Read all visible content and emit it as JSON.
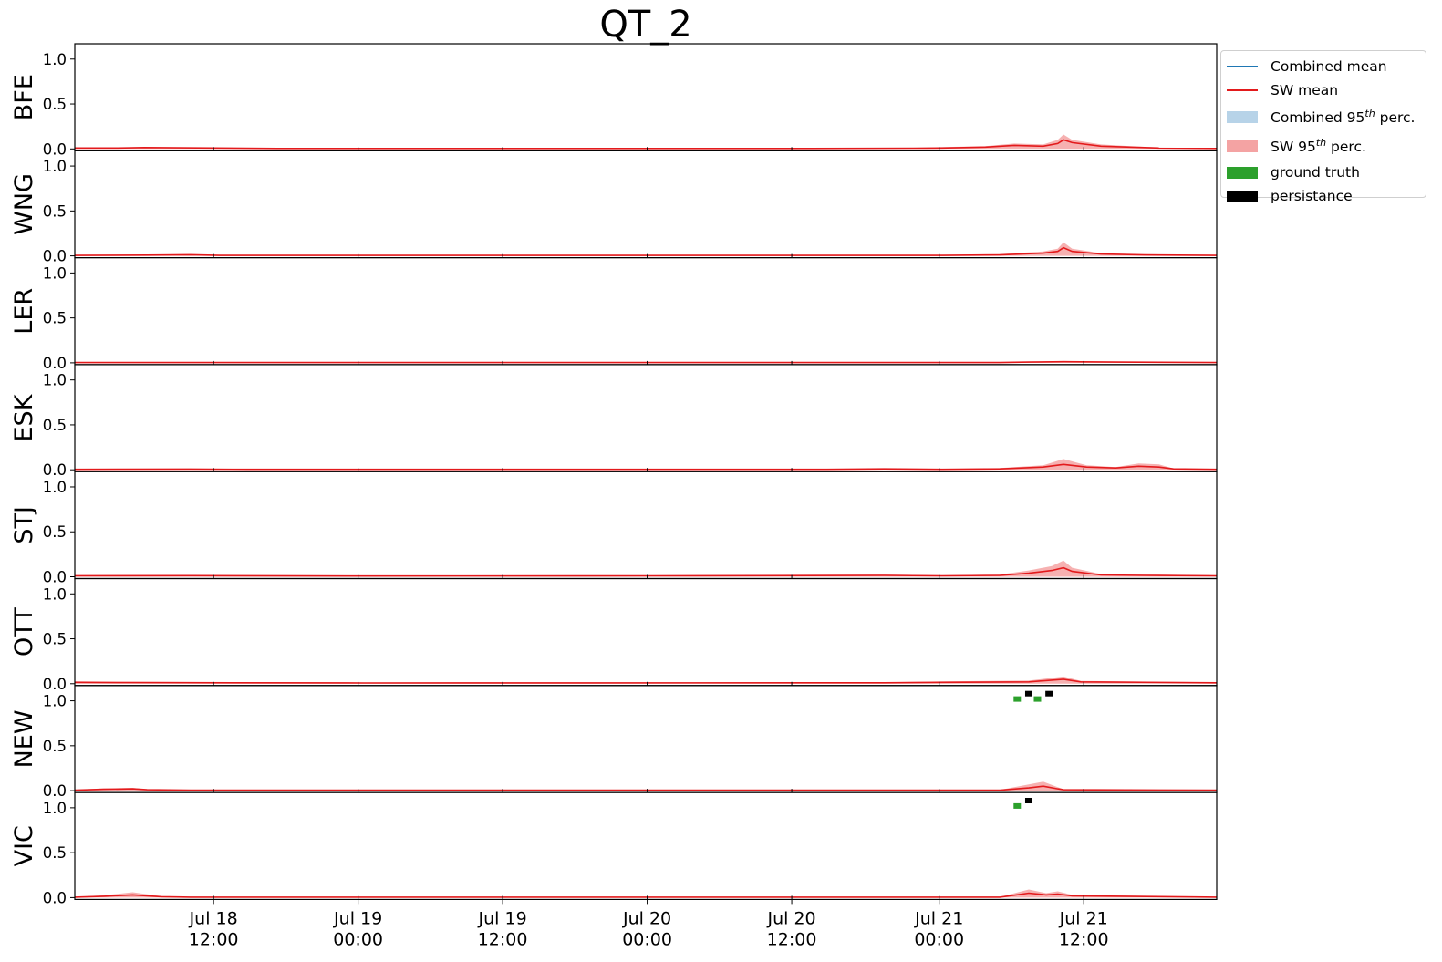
{
  "chart_data": {
    "type": "line",
    "title": "QT_2",
    "panels": [
      {
        "name": "BFE",
        "ylim": [
          0,
          1.15
        ],
        "yticks": [
          "0.0",
          "0.5",
          "1.0"
        ],
        "sw_mean": [
          [
            0,
            0.01
          ],
          [
            15,
            0.01
          ],
          [
            24,
            0.015
          ],
          [
            70,
            0.005
          ],
          [
            250,
            0.005
          ],
          [
            290,
            0.008
          ],
          [
            300,
            0.01
          ],
          [
            315,
            0.02
          ],
          [
            325,
            0.04
          ],
          [
            335,
            0.03
          ],
          [
            340,
            0.06
          ],
          [
            342,
            0.1
          ],
          [
            345,
            0.07
          ],
          [
            355,
            0.03
          ],
          [
            365,
            0.02
          ],
          [
            375,
            0.01
          ],
          [
            395,
            0.005
          ]
        ],
        "sw_p95": [
          [
            0,
            0.015
          ],
          [
            15,
            0.015
          ],
          [
            24,
            0.02
          ],
          [
            70,
            0.008
          ],
          [
            250,
            0.008
          ],
          [
            290,
            0.012
          ],
          [
            300,
            0.02
          ],
          [
            315,
            0.03
          ],
          [
            325,
            0.06
          ],
          [
            335,
            0.05
          ],
          [
            340,
            0.1
          ],
          [
            342,
            0.16
          ],
          [
            345,
            0.1
          ],
          [
            355,
            0.05
          ],
          [
            365,
            0.03
          ],
          [
            375,
            0.015
          ],
          [
            395,
            0.008
          ]
        ],
        "ground_truth": [],
        "persistance": []
      },
      {
        "name": "WNG",
        "ylim": [
          0,
          1.15
        ],
        "yticks": [
          "0.0",
          "0.5",
          "1.0"
        ],
        "sw_mean": [
          [
            0,
            0.005
          ],
          [
            25,
            0.008
          ],
          [
            40,
            0.012
          ],
          [
            50,
            0.005
          ],
          [
            300,
            0.005
          ],
          [
            320,
            0.01
          ],
          [
            335,
            0.03
          ],
          [
            340,
            0.05
          ],
          [
            342,
            0.09
          ],
          [
            345,
            0.05
          ],
          [
            355,
            0.02
          ],
          [
            370,
            0.01
          ],
          [
            395,
            0.005
          ]
        ],
        "sw_p95": [
          [
            0,
            0.008
          ],
          [
            25,
            0.012
          ],
          [
            40,
            0.02
          ],
          [
            50,
            0.008
          ],
          [
            300,
            0.008
          ],
          [
            320,
            0.02
          ],
          [
            335,
            0.05
          ],
          [
            340,
            0.08
          ],
          [
            342,
            0.15
          ],
          [
            345,
            0.08
          ],
          [
            355,
            0.03
          ],
          [
            370,
            0.015
          ],
          [
            395,
            0.008
          ]
        ],
        "ground_truth": [],
        "persistance": []
      },
      {
        "name": "LER",
        "ylim": [
          0,
          1.15
        ],
        "yticks": [
          "0.0",
          "0.5",
          "1.0"
        ],
        "sw_mean": [
          [
            0,
            0.003
          ],
          [
            320,
            0.003
          ],
          [
            330,
            0.008
          ],
          [
            342,
            0.012
          ],
          [
            360,
            0.008
          ],
          [
            395,
            0.003
          ]
        ],
        "sw_p95": [
          [
            0,
            0.005
          ],
          [
            320,
            0.005
          ],
          [
            330,
            0.012
          ],
          [
            342,
            0.02
          ],
          [
            360,
            0.012
          ],
          [
            395,
            0.005
          ]
        ],
        "ground_truth": [],
        "persistance": []
      },
      {
        "name": "ESK",
        "ylim": [
          0,
          1.15
        ],
        "yticks": [
          "0.0",
          "0.5",
          "1.0"
        ],
        "sw_mean": [
          [
            0,
            0.005
          ],
          [
            40,
            0.008
          ],
          [
            60,
            0.005
          ],
          [
            260,
            0.005
          ],
          [
            280,
            0.01
          ],
          [
            300,
            0.005
          ],
          [
            320,
            0.01
          ],
          [
            335,
            0.03
          ],
          [
            342,
            0.06
          ],
          [
            350,
            0.03
          ],
          [
            360,
            0.02
          ],
          [
            368,
            0.04
          ],
          [
            375,
            0.03
          ],
          [
            380,
            0.01
          ],
          [
            395,
            0.005
          ]
        ],
        "sw_p95": [
          [
            0,
            0.008
          ],
          [
            40,
            0.012
          ],
          [
            60,
            0.008
          ],
          [
            260,
            0.008
          ],
          [
            280,
            0.015
          ],
          [
            300,
            0.008
          ],
          [
            320,
            0.02
          ],
          [
            335,
            0.05
          ],
          [
            342,
            0.12
          ],
          [
            350,
            0.05
          ],
          [
            360,
            0.03
          ],
          [
            368,
            0.07
          ],
          [
            375,
            0.06
          ],
          [
            380,
            0.015
          ],
          [
            395,
            0.008
          ]
        ],
        "ground_truth": [],
        "persistance": []
      },
      {
        "name": "STJ",
        "ylim": [
          0,
          1.15
        ],
        "yticks": [
          "0.0",
          "0.5",
          "1.0"
        ],
        "sw_mean": [
          [
            0,
            0.01
          ],
          [
            40,
            0.012
          ],
          [
            100,
            0.008
          ],
          [
            200,
            0.01
          ],
          [
            280,
            0.015
          ],
          [
            300,
            0.01
          ],
          [
            320,
            0.015
          ],
          [
            330,
            0.04
          ],
          [
            338,
            0.07
          ],
          [
            342,
            0.1
          ],
          [
            345,
            0.06
          ],
          [
            355,
            0.02
          ],
          [
            370,
            0.015
          ],
          [
            395,
            0.01
          ]
        ],
        "sw_p95": [
          [
            0,
            0.02
          ],
          [
            40,
            0.02
          ],
          [
            100,
            0.015
          ],
          [
            200,
            0.015
          ],
          [
            280,
            0.025
          ],
          [
            300,
            0.015
          ],
          [
            320,
            0.025
          ],
          [
            330,
            0.07
          ],
          [
            338,
            0.12
          ],
          [
            342,
            0.18
          ],
          [
            345,
            0.1
          ],
          [
            355,
            0.03
          ],
          [
            370,
            0.025
          ],
          [
            395,
            0.015
          ]
        ],
        "ground_truth": [],
        "persistance": []
      },
      {
        "name": "OTT",
        "ylim": [
          0,
          1.15
        ],
        "yticks": [
          "0.0",
          "0.5",
          "1.0"
        ],
        "sw_mean": [
          [
            0,
            0.015
          ],
          [
            20,
            0.012
          ],
          [
            100,
            0.008
          ],
          [
            280,
            0.01
          ],
          [
            300,
            0.015
          ],
          [
            330,
            0.02
          ],
          [
            342,
            0.05
          ],
          [
            348,
            0.02
          ],
          [
            395,
            0.01
          ]
        ],
        "sw_p95": [
          [
            0,
            0.025
          ],
          [
            20,
            0.02
          ],
          [
            100,
            0.012
          ],
          [
            280,
            0.015
          ],
          [
            300,
            0.025
          ],
          [
            330,
            0.035
          ],
          [
            342,
            0.08
          ],
          [
            348,
            0.03
          ],
          [
            395,
            0.015
          ]
        ],
        "ground_truth": [],
        "persistance": []
      },
      {
        "name": "NEW",
        "ylim": [
          0,
          1.15
        ],
        "yticks": [
          "0.0",
          "0.5",
          "1.0"
        ],
        "sw_mean": [
          [
            0,
            0.005
          ],
          [
            10,
            0.015
          ],
          [
            20,
            0.02
          ],
          [
            25,
            0.01
          ],
          [
            40,
            0.005
          ],
          [
            320,
            0.005
          ],
          [
            330,
            0.03
          ],
          [
            335,
            0.05
          ],
          [
            340,
            0.02
          ],
          [
            342,
            0.01
          ],
          [
            395,
            0.005
          ]
        ],
        "sw_p95": [
          [
            0,
            0.008
          ],
          [
            10,
            0.025
          ],
          [
            20,
            0.03
          ],
          [
            25,
            0.015
          ],
          [
            40,
            0.008
          ],
          [
            320,
            0.008
          ],
          [
            330,
            0.07
          ],
          [
            335,
            0.1
          ],
          [
            340,
            0.04
          ],
          [
            342,
            0.015
          ],
          [
            395,
            0.008
          ]
        ],
        "ground_truth": [
          [
            326,
            1.02
          ],
          [
            333,
            1.02
          ]
        ],
        "persistance": [
          [
            330,
            1.08
          ],
          [
            337,
            1.08
          ]
        ]
      },
      {
        "name": "VIC",
        "ylim": [
          0,
          1.15
        ],
        "yticks": [
          "0.0",
          "0.5",
          "1.0"
        ],
        "sw_mean": [
          [
            0,
            0.005
          ],
          [
            10,
            0.015
          ],
          [
            20,
            0.03
          ],
          [
            30,
            0.01
          ],
          [
            40,
            0.005
          ],
          [
            320,
            0.005
          ],
          [
            330,
            0.05
          ],
          [
            336,
            0.03
          ],
          [
            340,
            0.04
          ],
          [
            345,
            0.02
          ],
          [
            395,
            0.005
          ]
        ],
        "sw_p95": [
          [
            0,
            0.008
          ],
          [
            10,
            0.025
          ],
          [
            20,
            0.06
          ],
          [
            30,
            0.015
          ],
          [
            40,
            0.008
          ],
          [
            320,
            0.008
          ],
          [
            330,
            0.09
          ],
          [
            336,
            0.05
          ],
          [
            340,
            0.07
          ],
          [
            345,
            0.03
          ],
          [
            395,
            0.008
          ]
        ],
        "ground_truth": [
          [
            326,
            1.02
          ]
        ],
        "persistance": [
          [
            330,
            1.08
          ]
        ]
      }
    ],
    "x_range_hours": [
      0,
      395
    ],
    "x_ticks": [
      {
        "hour": 48,
        "line1": "Jul 18",
        "line2": "12:00"
      },
      {
        "hour": 98,
        "line1": "Jul 19",
        "line2": "00:00"
      },
      {
        "hour": 148,
        "line1": "Jul 19",
        "line2": "12:00"
      },
      {
        "hour": 198,
        "line1": "Jul 20",
        "line2": "00:00"
      },
      {
        "hour": 248,
        "line1": "Jul 20",
        "line2": "12:00"
      },
      {
        "hour": 299,
        "line1": "Jul 21",
        "line2": "00:00"
      },
      {
        "hour": 349,
        "line1": "Jul 21",
        "line2": "12:00"
      }
    ],
    "grid": false,
    "legend_placement": "outside upper right",
    "colors": {
      "combined_mean": "#1f77b4",
      "sw_mean": "#e31a1c",
      "combined_p95": "#b7d3e8",
      "sw_p95": "#f4a3a3",
      "ground_truth": "#2ca02c",
      "persistance": "#000000"
    }
  },
  "legend": {
    "combined_mean": "Combined mean",
    "sw_mean": "SW mean",
    "combined_p95_prefix": "Combined 95",
    "sw_p95_prefix": "SW 95",
    "p95_sup": "th",
    "p95_suffix": " perc.",
    "ground_truth": "ground truth",
    "persistance": "persistance"
  }
}
